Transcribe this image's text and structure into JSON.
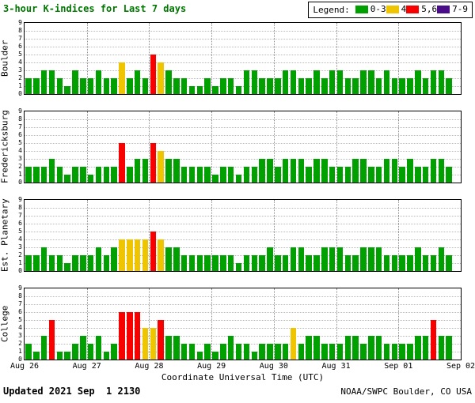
{
  "title": "3-hour K-indices for Last 7 days",
  "legend": {
    "label": "Legend:",
    "items": [
      {
        "label": "0-3",
        "color_key": "green"
      },
      {
        "label": "4",
        "color_key": "yellow"
      },
      {
        "label": "5,6",
        "color_key": "red"
      },
      {
        "label": "7-9",
        "color_key": "purple"
      }
    ]
  },
  "footer": {
    "updated": "Updated 2021 Sep  1 2130",
    "credit": "NOAA/SWPC Boulder, CO USA"
  },
  "chart_data": {
    "type": "bar",
    "title": "3-hour K-indices for Last 7 days",
    "xlabel": "Coordinate Universal Time (UTC)",
    "x_tick_labels": [
      "Aug 26",
      "Aug 27",
      "Aug 28",
      "Aug 29",
      "Aug 30",
      "Aug 31",
      "Sep 01",
      "Sep 02"
    ],
    "ylim": [
      0,
      9
    ],
    "y_ticks": [
      0,
      1,
      2,
      3,
      4,
      5,
      6,
      7,
      8,
      9
    ],
    "hours_per_bar": 3,
    "bars_per_day": 8,
    "grid": "dotted",
    "legend_position": "top-right",
    "colors": {
      "green": "#00a000",
      "yellow": "#eec500",
      "red": "#f80000",
      "purple": "#4a0d8a",
      "title_text": "#007700"
    },
    "color_rule": {
      "green": "K 0-3",
      "yellow": "K 4",
      "red": "K 5-6",
      "purple": "K 7-9"
    },
    "series": [
      {
        "name": "Boulder",
        "values": [
          2,
          2,
          3,
          3,
          2,
          1,
          3,
          2,
          2,
          3,
          2,
          2,
          4,
          2,
          3,
          2,
          5,
          4,
          3,
          2,
          2,
          1,
          1,
          2,
          1,
          2,
          2,
          1,
          3,
          3,
          2,
          2,
          2,
          3,
          3,
          2,
          2,
          3,
          2,
          3,
          3,
          2,
          2,
          3,
          3,
          2,
          3,
          2,
          2,
          2,
          3,
          2,
          3,
          3,
          2
        ]
      },
      {
        "name": "Fredericksburg",
        "values": [
          2,
          2,
          2,
          3,
          2,
          1,
          2,
          2,
          1,
          2,
          2,
          2,
          5,
          2,
          3,
          3,
          5,
          4,
          3,
          3,
          2,
          2,
          2,
          2,
          1,
          2,
          2,
          1,
          2,
          2,
          3,
          3,
          2,
          3,
          3,
          3,
          2,
          3,
          3,
          2,
          2,
          2,
          3,
          3,
          2,
          2,
          3,
          3,
          2,
          3,
          2,
          2,
          3,
          3,
          2
        ]
      },
      {
        "name": "Est. Planetary",
        "values": [
          2,
          2,
          3,
          2,
          2,
          1,
          2,
          2,
          2,
          3,
          2,
          3,
          4,
          4,
          4,
          4,
          5,
          4,
          3,
          3,
          2,
          2,
          2,
          2,
          2,
          2,
          2,
          1,
          2,
          2,
          2,
          3,
          2,
          2,
          3,
          3,
          2,
          2,
          3,
          3,
          3,
          2,
          2,
          3,
          3,
          3,
          2,
          2,
          2,
          2,
          3,
          2,
          2,
          3,
          2
        ]
      },
      {
        "name": "College",
        "values": [
          2,
          1,
          3,
          5,
          1,
          1,
          2,
          3,
          2,
          3,
          1,
          2,
          6,
          6,
          6,
          4,
          4,
          5,
          3,
          3,
          2,
          2,
          1,
          2,
          1,
          2,
          3,
          2,
          2,
          1,
          2,
          2,
          2,
          2,
          4,
          2,
          3,
          3,
          2,
          2,
          2,
          3,
          3,
          2,
          3,
          3,
          2,
          2,
          2,
          2,
          3,
          3,
          5,
          3,
          3
        ]
      }
    ]
  }
}
